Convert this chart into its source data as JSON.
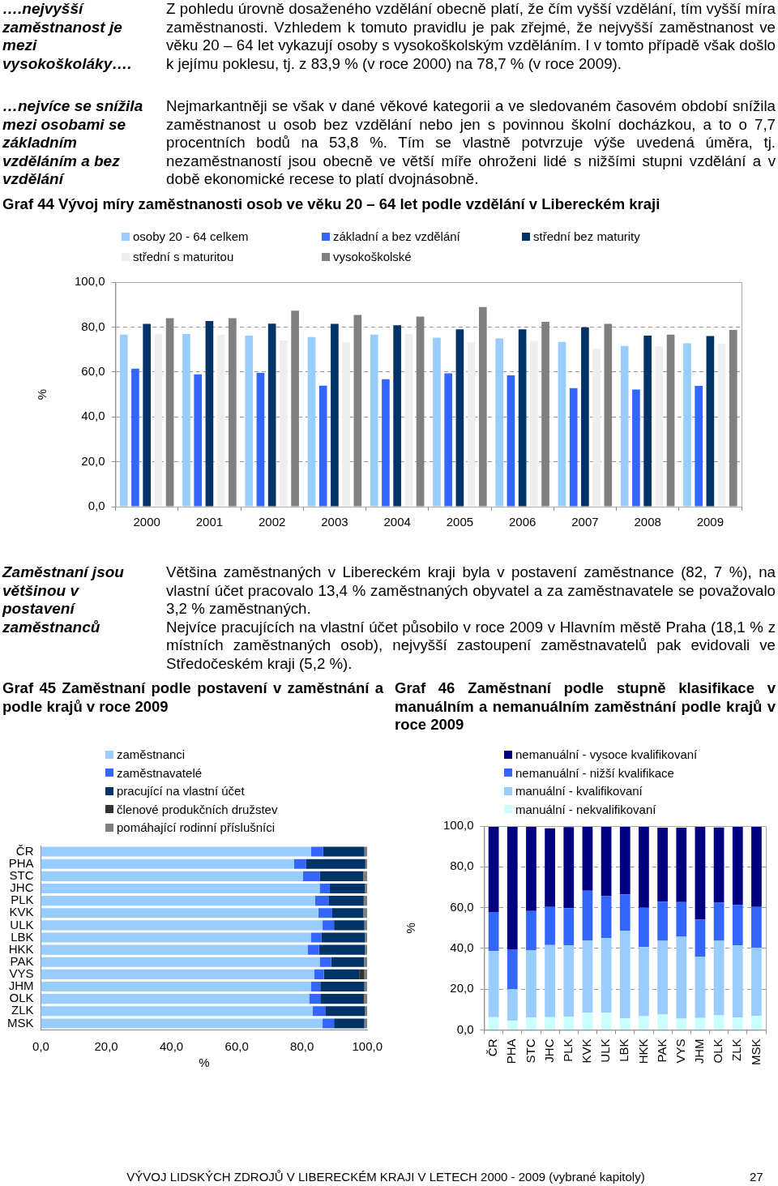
{
  "chart_data": [
    {
      "type": "bar",
      "title": "Graf 44 Vývoj míry zaměstnanosti osob ve věku 20 – 64 let podle vzdělání v Libereckém kraji",
      "ylabel": "%",
      "legend": "top",
      "grid": "y",
      "annotations": [
        "….nejvyšší zaměstnanost je mezi vysokoškoláky….",
        "Z pohledu úrovně dosaženého vzdělání obecně platí, že čím vyšší vzdělání, tím vyšší míra zaměstnanosti. Vzhledem k tomuto pravidlu je pak zřejmé, že nejvyšší zaměstnanost ve věku 20 – 64 let vykazují osoby s vysokoškolským vzděláním. I v tomto případě však došlo k jejímu poklesu, tj. z 83,9 % (v roce 2000) na 78,7 % (v roce 2009).",
        "…nejvíce se snížila mezi osobami se základním vzděláním a bez vzdělání",
        "Nejmarkantněji se však v dané věkové kategorii a ve sledovaném časovém období snížila zaměstnanost u osob bez vzdělání nebo jen s povinnou školní docházkou, a to o 7,7 procentních bodů na 53,8 %. Tím se vlastně potvrzuje výše uvedená úměra, tj. nezaměstnaností jsou obecně ve větší míře ohroženi lidé s nižšími stupni vzdělání a v době ekonomické recese to platí dvojnásobně."
      ],
      "categories": [
        "2000",
        "2001",
        "2002",
        "2003",
        "2004",
        "2005",
        "2006",
        "2007",
        "2008",
        "2009"
      ],
      "ylim": [
        0,
        100
      ],
      "yticks": [
        {
          "value": 0,
          "label": "0,0"
        },
        {
          "value": 20,
          "label": "20,0"
        },
        {
          "value": 40,
          "label": "40,0"
        },
        {
          "value": 60,
          "label": "60,0"
        },
        {
          "value": 80,
          "label": "80,0"
        },
        {
          "value": 100,
          "label": "100,0"
        }
      ],
      "series": [
        {
          "name": "osoby 20 - 64 celkem",
          "color": "#99ccff",
          "values": [
            76.6,
            76.9,
            76.2,
            75.5,
            76.6,
            75.3,
            74.9,
            73.4,
            71.6,
            72.7
          ]
        },
        {
          "name": "základní a bez vzdělání",
          "color": "#3366ff",
          "values": [
            61.5,
            58.9,
            59.6,
            53.9,
            56.8,
            59.4,
            58.5,
            52.8,
            52.2,
            53.8
          ]
        },
        {
          "name": "střední bez maturity",
          "color": "#003366",
          "values": [
            81.4,
            82.7,
            81.5,
            81.4,
            80.8,
            79.0,
            79.0,
            79.9,
            76.2,
            76.0
          ]
        },
        {
          "name": "střední s maturitou",
          "color": "#eeeeee",
          "values": [
            76.8,
            76.6,
            74.0,
            73.2,
            76.8,
            73.1,
            73.8,
            70.3,
            71.4,
            72.5
          ]
        },
        {
          "name": "vysokoškolské",
          "color": "#808080",
          "values": [
            83.9,
            83.9,
            87.3,
            85.4,
            84.7,
            88.9,
            82.3,
            81.4,
            76.6,
            78.7
          ]
        }
      ]
    },
    {
      "type": "bar",
      "orientation": "horizontal",
      "stacked": true,
      "title": "Graf 45 Zaměstnaní podle postavení v zaměstnání a podle krajů v roce 2009",
      "xlabel": "%",
      "legend": "top left",
      "annotations": [
        "Zaměstnaní jsou většinou v postavení zaměstnanců",
        "Většina zaměstnaných v Libereckém kraji byla v postavení zaměstnance (82, 7 %), na vlastní účet pracovalo 13,4 % zaměstnaných obyvatel a za zaměstnavatele se považovalo 3,2 % zaměstnaných.\nNejvíce pracujících na vlastní účet působilo v roce 2009 v Hlavním městě Praha (18,1 % z místních zaměstnaných osob), nejvyšší zastoupení zaměstnavatelů pak evidovali ve Středočeském kraji (5,2 %)."
      ],
      "categories": [
        "ČR",
        "PHA",
        "STC",
        "JHC",
        "PLK",
        "KVK",
        "ULK",
        "LBK",
        "HKK",
        "PAK",
        "VYS",
        "JHM",
        "OLK",
        "ZLK",
        "MSK"
      ],
      "xlim": [
        0,
        100
      ],
      "xticks": [
        {
          "value": 0,
          "label": "0,0"
        },
        {
          "value": 20,
          "label": "20,0"
        },
        {
          "value": 40,
          "label": "40,0"
        },
        {
          "value": 60,
          "label": "60,0"
        },
        {
          "value": 80,
          "label": "80,0"
        },
        {
          "value": 100,
          "label": "100,0"
        }
      ],
      "series": [
        {
          "name": "zaměstnanci",
          "color": "#99ccff",
          "values": [
            82.8,
            77.6,
            80.3,
            85.4,
            84.0,
            85.0,
            86.3,
            82.7,
            81.7,
            85.4,
            83.8,
            82.7,
            82.2,
            83.3,
            86.3
          ]
        },
        {
          "name": "zaměstnavatelé",
          "color": "#3366ff",
          "values": [
            3.7,
            3.7,
            5.2,
            3.1,
            4.1,
            4.1,
            3.5,
            3.2,
            3.5,
            3.5,
            2.9,
            2.9,
            3.4,
            3.8,
            3.5
          ]
        },
        {
          "name": "pracující na vlastní účet",
          "color": "#003366",
          "values": [
            12.6,
            18.1,
            13.2,
            10.7,
            10.8,
            9.7,
            9.3,
            13.4,
            14.1,
            10.1,
            10.8,
            13.5,
            13.1,
            12.1,
            9.3
          ]
        },
        {
          "name": "členové produkčních družstev",
          "color": "#333333",
          "values": [
            0,
            0,
            0,
            0,
            0,
            0,
            0,
            0,
            0,
            0,
            1.6,
            0,
            0.3,
            0,
            0
          ]
        },
        {
          "name": "pomáhající rodinní příslušníci",
          "color": "#808080",
          "values": [
            0.9,
            0.6,
            1.3,
            0.8,
            1.1,
            1.2,
            0.9,
            0.7,
            0.7,
            1.0,
            0.9,
            0.9,
            1.0,
            0.8,
            0.9
          ]
        }
      ]
    },
    {
      "type": "bar",
      "stacked": true,
      "title": "Graf 46 Zaměstnaní podle stupně klasifikace v manuálním a nemanuálním zaměstnání podle krajů v roce 2009",
      "ylabel": "%",
      "legend": "top",
      "grid": "y",
      "annotations": [
        "VÝVOJ LIDSKÝCH ZDROJŮ V LIBERECKÉM KRAJI V LETECH 2000 - 2009 (vybrané kapitoly)",
        "27"
      ],
      "categories": [
        "ČR",
        "PHA",
        "STC",
        "JHC",
        "PLK",
        "KVK",
        "ULK",
        "LBK",
        "HKK",
        "PAK",
        "VYS",
        "JHM",
        "OLK",
        "ZLK",
        "MSK"
      ],
      "ylim": [
        0,
        100
      ],
      "yticks": [
        {
          "value": 0,
          "label": "0,0"
        },
        {
          "value": 20,
          "label": "20,0"
        },
        {
          "value": 40,
          "label": "40,0"
        },
        {
          "value": 60,
          "label": "60,0"
        },
        {
          "value": 80,
          "label": "80,0"
        },
        {
          "value": 100,
          "label": "100,0"
        }
      ],
      "series": [
        {
          "name": "manuální - nekvalifikovaní",
          "color": "#ccffff",
          "values": [
            6.3,
            4.5,
            6.1,
            6.3,
            6.5,
            8.4,
            8.4,
            5.7,
            6.8,
            7.6,
            5.6,
            5.9,
            7.2,
            6.1,
            6.9
          ]
        },
        {
          "name": "manuální - kvalifikovaní",
          "color": "#99ccff",
          "values": [
            32.4,
            15.5,
            33.1,
            35.3,
            35.0,
            35.5,
            36.7,
            43.0,
            33.9,
            36.1,
            40.1,
            30.1,
            36.5,
            35.4,
            33.4
          ]
        },
        {
          "name": "nemanuální - nižší kvalifikace",
          "color": "#3366ff",
          "values": [
            19.2,
            19.6,
            19.1,
            18.7,
            18.2,
            24.4,
            20.5,
            17.8,
            19.2,
            19.2,
            17.0,
            18.1,
            18.7,
            19.7,
            20.0
          ]
        },
        {
          "name": "nemanuální - vysoce kvalifikovaní",
          "color": "#000080",
          "values": [
            41.7,
            60.0,
            41.3,
            38.6,
            39.8,
            31.3,
            34.0,
            33.1,
            39.7,
            36.3,
            36.5,
            45.5,
            36.9,
            38.5,
            39.3
          ]
        }
      ]
    }
  ]
}
